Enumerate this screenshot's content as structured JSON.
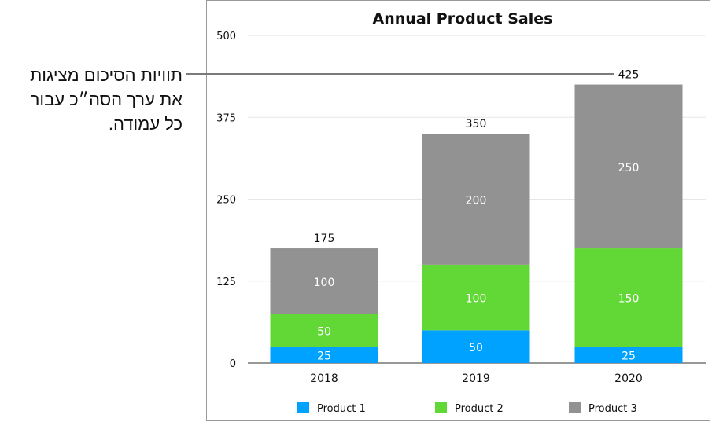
{
  "callout": {
    "lines": [
      "תוויות הסיכום מציגות",
      "את ערך הסה״כ עבור",
      "כל עמודה."
    ]
  },
  "chart_data": {
    "type": "bar",
    "stacked": true,
    "title": "Annual Product Sales",
    "xlabel": "",
    "ylabel": "",
    "categories": [
      "2018",
      "2019",
      "2020"
    ],
    "series": [
      {
        "name": "Product 1",
        "values": [
          25,
          50,
          25
        ],
        "color": "#00a2ff"
      },
      {
        "name": "Product 2",
        "values": [
          50,
          100,
          150
        ],
        "color": "#61d836"
      },
      {
        "name": "Product 3",
        "values": [
          100,
          200,
          250
        ],
        "color": "#929292"
      }
    ],
    "totals": [
      175,
      350,
      425
    ],
    "ylim": [
      0,
      500
    ],
    "yticks": [
      0,
      125,
      250,
      375,
      500
    ],
    "grid": true,
    "legend": "bottom",
    "data_labels": true
  }
}
